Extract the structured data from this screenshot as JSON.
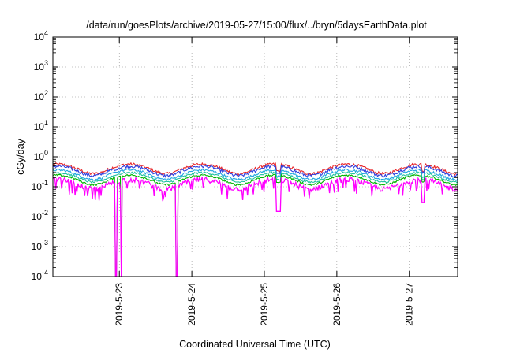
{
  "chart_data": {
    "type": "line",
    "title": "/data/run/goesPlots/archive/2019-05-27/15:00/flux/../bryn/5daysEarthData.plot",
    "xlabel": "Coordinated Universal Time (UTC)",
    "ylabel": "cGy/day",
    "yscale": "log",
    "ylim": [
      0.0001,
      10000
    ],
    "xlim": [
      "2019-05-22T02:00",
      "2019-05-27T16:00"
    ],
    "y_ticks": [
      {
        "value": 0.0001,
        "base": "10",
        "exp": "-4"
      },
      {
        "value": 0.001,
        "base": "10",
        "exp": "-3"
      },
      {
        "value": 0.01,
        "base": "10",
        "exp": "-2"
      },
      {
        "value": 0.1,
        "base": "10",
        "exp": "-1"
      },
      {
        "value": 1,
        "base": "10",
        "exp": "0"
      },
      {
        "value": 10,
        "base": "10",
        "exp": "1"
      },
      {
        "value": 100,
        "base": "10",
        "exp": "2"
      },
      {
        "value": 1000,
        "base": "10",
        "exp": "3"
      },
      {
        "value": 10000,
        "base": "10",
        "exp": "4"
      }
    ],
    "x_ticks": [
      {
        "value": "2019-05-23T00:00",
        "label": "2019-5-23"
      },
      {
        "value": "2019-05-24T00:00",
        "label": "2019-5-24"
      },
      {
        "value": "2019-05-25T00:00",
        "label": "2019-5-25"
      },
      {
        "value": "2019-05-26T00:00",
        "label": "2019-5-26"
      },
      {
        "value": "2019-05-27T00:00",
        "label": "2019-5-27"
      }
    ],
    "grid": true,
    "series": [
      {
        "color": "#e8272a",
        "level": 0.42,
        "noise": 0.22
      },
      {
        "color": "#2c3fe0",
        "level": 0.36,
        "noise": 0.25
      },
      {
        "color": "#22a7e0",
        "level": 0.27,
        "noise": 0.18
      },
      {
        "color": "#1fc2a0",
        "level": 0.22,
        "noise": 0.15
      },
      {
        "color": "#00b400",
        "level": 0.18,
        "noise": 0.15
      },
      {
        "color": "#ff00ff",
        "level": 0.13,
        "noise": 0.4
      }
    ],
    "dips": [
      {
        "start": "2019-05-22T22:40",
        "end": "2019-05-22T23:10",
        "value": 0.0001
      },
      {
        "start": "2019-05-23T00:30",
        "end": "2019-05-23T00:55",
        "value": 0.0001
      },
      {
        "start": "2019-05-23T18:40",
        "end": "2019-05-23T19:15",
        "value": 0.0001
      },
      {
        "start": "2019-05-25T04:00",
        "end": "2019-05-25T05:30",
        "value": 0.015
      },
      {
        "start": "2019-05-27T04:00",
        "end": "2019-05-27T05:00",
        "value": 0.03
      }
    ]
  }
}
